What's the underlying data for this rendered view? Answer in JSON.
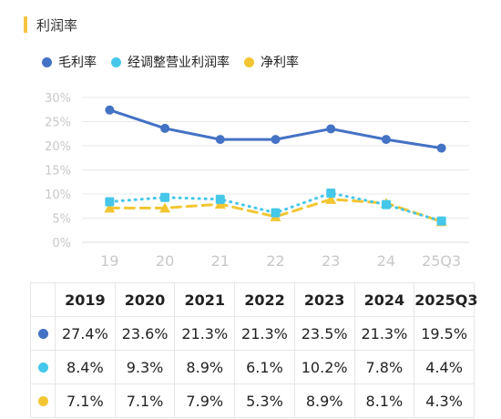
{
  "header": {
    "title": "利润率",
    "accent": "#F5C542"
  },
  "colors": {
    "gross": "#4472C4",
    "adjusted": "#45C7EA",
    "net": "#F2C632",
    "axis_text": "#c8c8c8",
    "grid": "#e9e9e9"
  },
  "chart_data": {
    "type": "line",
    "categories": [
      "19",
      "20",
      "21",
      "22",
      "23",
      "24",
      "25Q3"
    ],
    "yticks": [
      "0%",
      "5%",
      "10%",
      "15%",
      "20%",
      "25%",
      "30%"
    ],
    "ylim": [
      0,
      30
    ],
    "legend_position": "top-left",
    "series": [
      {
        "name": "毛利率",
        "color": "#4472C4",
        "marker": "circle",
        "line": "solid",
        "values": [
          27.4,
          23.6,
          21.3,
          21.3,
          23.5,
          21.3,
          19.5
        ]
      },
      {
        "name": "经调整营业利润率",
        "color": "#45C7EA",
        "marker": "square",
        "line": "dotted",
        "values": [
          8.4,
          9.3,
          8.9,
          6.1,
          10.2,
          7.8,
          4.4
        ]
      },
      {
        "name": "净利率",
        "color": "#F2C632",
        "marker": "triangle",
        "line": "dashed",
        "values": [
          7.1,
          7.1,
          7.9,
          5.3,
          8.9,
          8.1,
          4.3
        ]
      }
    ]
  },
  "table": {
    "headers": [
      "2019",
      "2020",
      "2021",
      "2022",
      "2023",
      "2024",
      "2025Q3"
    ],
    "rows": [
      {
        "color": "#4472C4",
        "cells": [
          "27.4%",
          "23.6%",
          "21.3%",
          "21.3%",
          "23.5%",
          "21.3%",
          "19.5%"
        ]
      },
      {
        "color": "#45C7EA",
        "cells": [
          "8.4%",
          "9.3%",
          "8.9%",
          "6.1%",
          "10.2%",
          "7.8%",
          "4.4%"
        ]
      },
      {
        "color": "#F2C632",
        "cells": [
          "7.1%",
          "7.1%",
          "7.9%",
          "5.3%",
          "8.9%",
          "8.1%",
          "4.3%"
        ]
      }
    ]
  }
}
